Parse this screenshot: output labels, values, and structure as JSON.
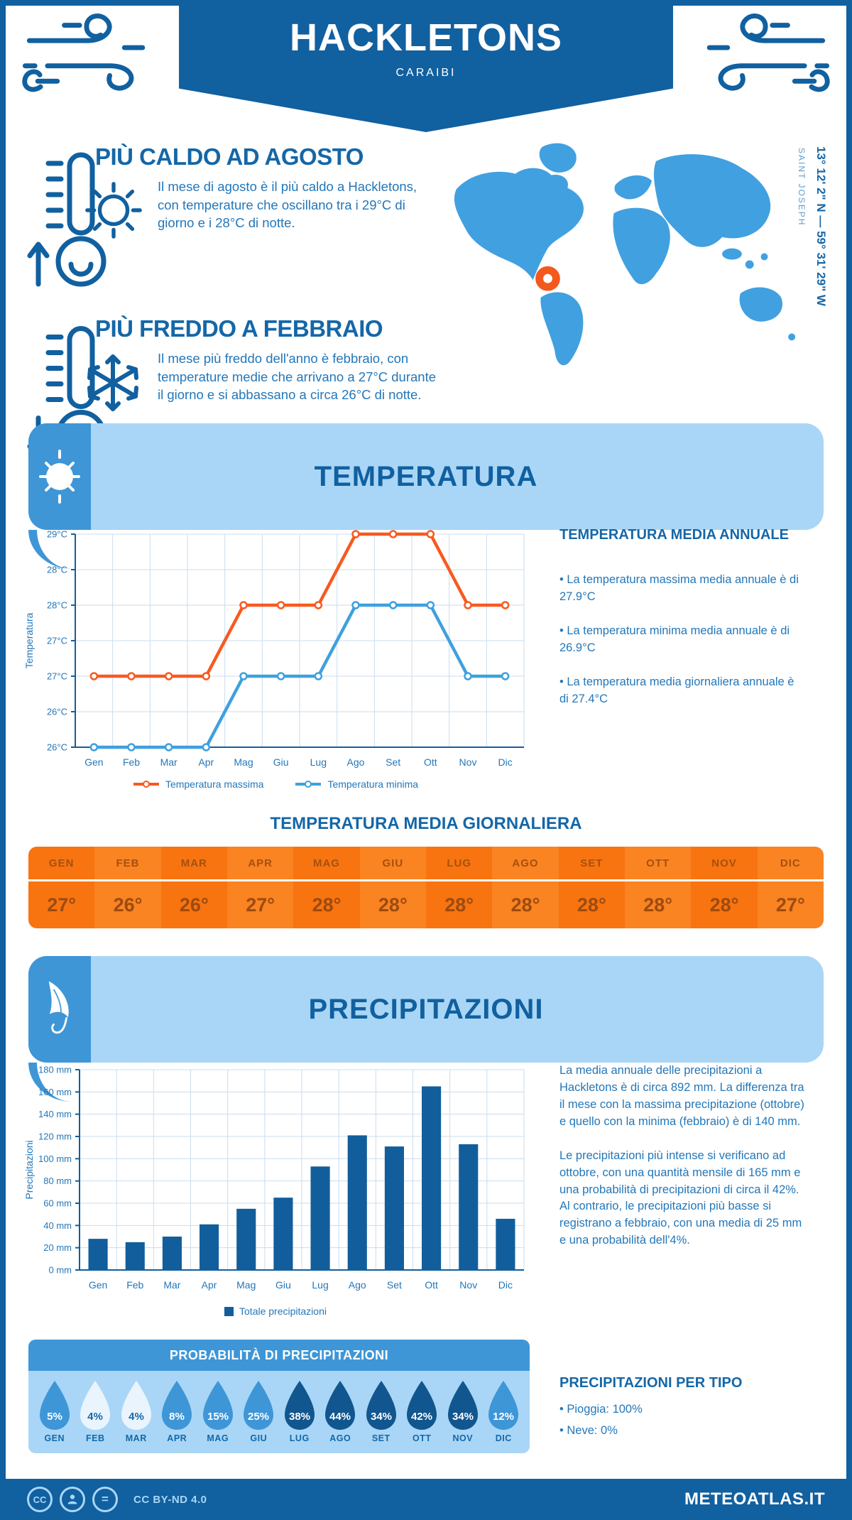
{
  "colors": {
    "primary": "#1160A0",
    "heading": "#1467A8",
    "body_text": "#2377B9",
    "panel_light": "#A9D6F6",
    "accent": "#3E96D7",
    "map_fill": "#41A0E0",
    "marker": "#F4581C",
    "temp_max": "#F75A21",
    "temp_min": "#3FA0DE",
    "bar_fill": "#125E9C",
    "grid": "#C9DDEF",
    "axis": "#125E9C",
    "orange_a": "#F87410",
    "orange_b": "#FA8322",
    "orange_text_header": "#A5500E",
    "orange_text_value": "#9C4B10",
    "drop_light": "#EAF4FC",
    "drop_medium": "#3E96D7",
    "drop_dark": "#11568F",
    "icon_light": "#A9D6F6"
  },
  "header": {
    "title": "HACKLETONS",
    "subtitle": "CARAIBI"
  },
  "highlights": {
    "warm": {
      "title": "PIÙ CALDO AD AGOSTO",
      "text": "Il mese di agosto è il più caldo a Hackletons, con temperature che oscillano tra i 29°C di giorno e i 28°C di notte."
    },
    "cold": {
      "title": "PIÙ FREDDO A FEBBRAIO",
      "text": "Il mese più freddo dell'anno è febbraio, con temperature medie che arrivano a 27°C durante il giorno e si abbassano a circa 26°C di notte."
    }
  },
  "map": {
    "coordinates": "13° 12' 2\" N — 59° 31' 29\" W",
    "place": "SAINT JOSEPH"
  },
  "temperature_section": {
    "title": "TEMPERATURA",
    "annual": {
      "title": "TEMPERATURA MEDIA ANNUALE",
      "bullets": [
        "• La temperatura massima media annuale è di 27.9°C",
        "• La temperatura minima media annuale è di 26.9°C",
        "• La temperatura media giornaliera annuale è di 27.4°C"
      ]
    },
    "daily": {
      "title": "TEMPERATURA MEDIA GIORNALIERA",
      "months": [
        "GEN",
        "FEB",
        "MAR",
        "APR",
        "MAG",
        "GIU",
        "LUG",
        "AGO",
        "SET",
        "OTT",
        "NOV",
        "DIC"
      ],
      "values": [
        "27°",
        "26°",
        "26°",
        "27°",
        "28°",
        "28°",
        "28°",
        "28°",
        "28°",
        "28°",
        "28°",
        "27°"
      ]
    }
  },
  "precipitation_section": {
    "title": "PRECIPITAZIONI",
    "paragraphs": [
      "La media annuale delle precipitazioni a Hackletons è di circa 892 mm. La differenza tra il mese con la massima precipitazione (ottobre) e quello con la minima (febbraio) è di 140 mm.",
      "Le precipitazioni più intense si verificano ad ottobre, con una quantità mensile di 165 mm e una probabilità di precipitazioni di circa il 42%. Al contrario, le precipitazioni più basse si registrano a febbraio, con una media di 25 mm e una probabilità dell'4%."
    ],
    "probability": {
      "title": "PROBABILITÀ DI PRECIPITAZIONI",
      "months": [
        "GEN",
        "FEB",
        "MAR",
        "APR",
        "MAG",
        "GIU",
        "LUG",
        "AGO",
        "SET",
        "OTT",
        "NOV",
        "DIC"
      ],
      "values": [
        "5%",
        "4%",
        "4%",
        "8%",
        "15%",
        "25%",
        "38%",
        "44%",
        "34%",
        "42%",
        "34%",
        "12%"
      ],
      "tiers": [
        "medium",
        "light",
        "light",
        "medium",
        "medium",
        "medium",
        "dark",
        "dark",
        "dark",
        "dark",
        "dark",
        "medium"
      ]
    },
    "by_type": {
      "title": "PRECIPITAZIONI PER TIPO",
      "bullets": [
        "• Pioggia: 100%",
        "• Neve: 0%"
      ]
    }
  },
  "chart_data": [
    {
      "type": "line",
      "categories": [
        "Gen",
        "Feb",
        "Mar",
        "Apr",
        "Mag",
        "Giu",
        "Lug",
        "Ago",
        "Set",
        "Ott",
        "Nov",
        "Dic"
      ],
      "series": [
        {
          "name": "Temperatura massima",
          "color": "#F75A21",
          "values": [
            27,
            27,
            27,
            27,
            28,
            28,
            28,
            29,
            29,
            29,
            28,
            28
          ]
        },
        {
          "name": "Temperatura minima",
          "color": "#3FA0DE",
          "values": [
            26,
            26,
            26,
            26,
            27,
            27,
            27,
            28,
            28,
            28,
            27,
            27
          ]
        }
      ],
      "ylabel": "Temperatura",
      "ylim": [
        26,
        29
      ],
      "ytick_step": 0.5,
      "ytick_labels": [
        "29°C",
        "28°C",
        "28°C",
        "27°C",
        "27°C",
        "26°C",
        "26°C"
      ],
      "grid": true,
      "legend_position": "bottom"
    },
    {
      "type": "bar",
      "categories": [
        "Gen",
        "Feb",
        "Mar",
        "Apr",
        "Mag",
        "Giu",
        "Lug",
        "Ago",
        "Set",
        "Ott",
        "Nov",
        "Dic"
      ],
      "values": [
        28,
        25,
        30,
        41,
        55,
        65,
        93,
        121,
        111,
        165,
        113,
        46
      ],
      "ylabel": "Precipitazioni",
      "ylim": [
        0,
        180
      ],
      "ytick_step": 20,
      "ytick_suffix": " mm",
      "legend": "Totale precipitazioni",
      "grid": true,
      "legend_position": "bottom"
    }
  ],
  "footer": {
    "license": "CC BY-ND 4.0",
    "brand": "METEOATLAS.IT"
  }
}
